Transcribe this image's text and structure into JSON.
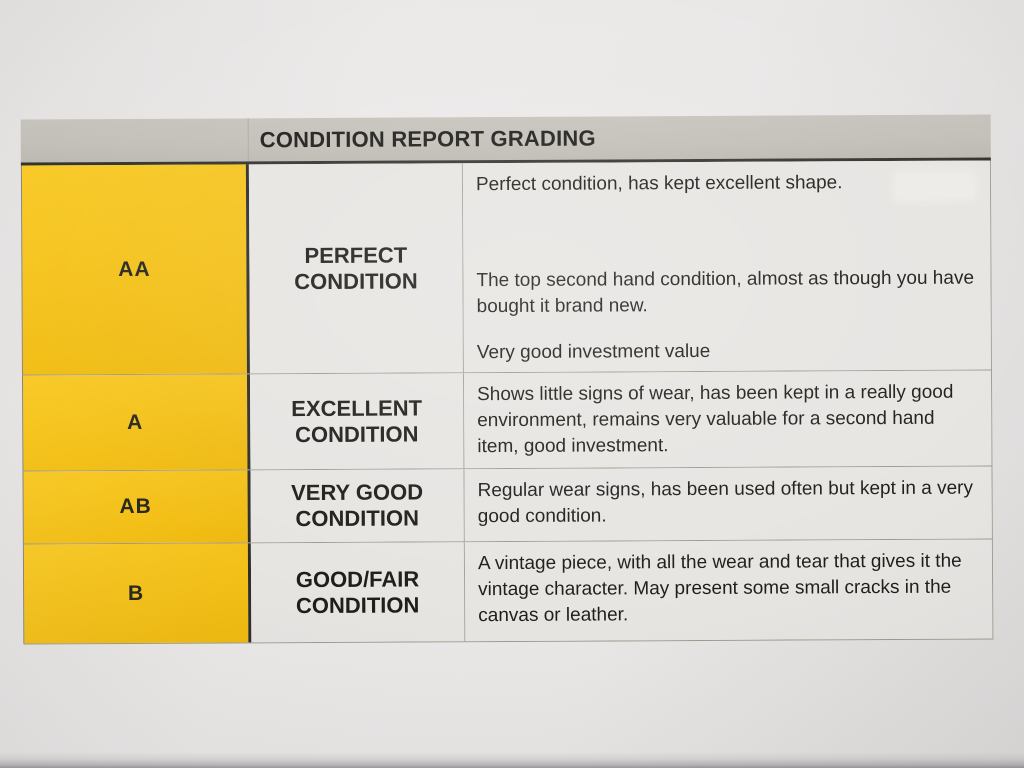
{
  "table": {
    "title": "CONDITION REPORT GRADING",
    "rows": [
      {
        "grade": "AA",
        "label_line1": "PERFECT",
        "label_line2": "CONDITION",
        "paragraphs": [
          "Perfect condition, has kept excellent shape.",
          "The top second hand condition, almost as though you have bought it brand new.",
          "Very good investment value"
        ]
      },
      {
        "grade": "A",
        "label_line1": "EXCELLENT",
        "label_line2": "CONDITION",
        "paragraphs": [
          "Shows little signs of wear, has been kept in a really good environment, remains very valuable for a second hand item, good investment."
        ]
      },
      {
        "grade": "AB",
        "label_line1": "VERY GOOD",
        "label_line2": "CONDITION",
        "paragraphs": [
          "Regular wear signs, has been used often but kept in a very good condition."
        ]
      },
      {
        "grade": "B",
        "label_line1": "GOOD/FAIR",
        "label_line2": "CONDITION",
        "paragraphs": [
          "A vintage piece, with all the wear and tear that gives it the vintage character. May present some small cracks in the canvas or leather."
        ]
      }
    ],
    "colors": {
      "grade_column_yellow": "#F4C11A",
      "header_bar_gray": "#C2BFB8",
      "cell_background": "#E7E5E2",
      "paper_background": "#E9E7E6",
      "text": "#1F1E1B",
      "dark_border": "#2F2D28"
    }
  }
}
